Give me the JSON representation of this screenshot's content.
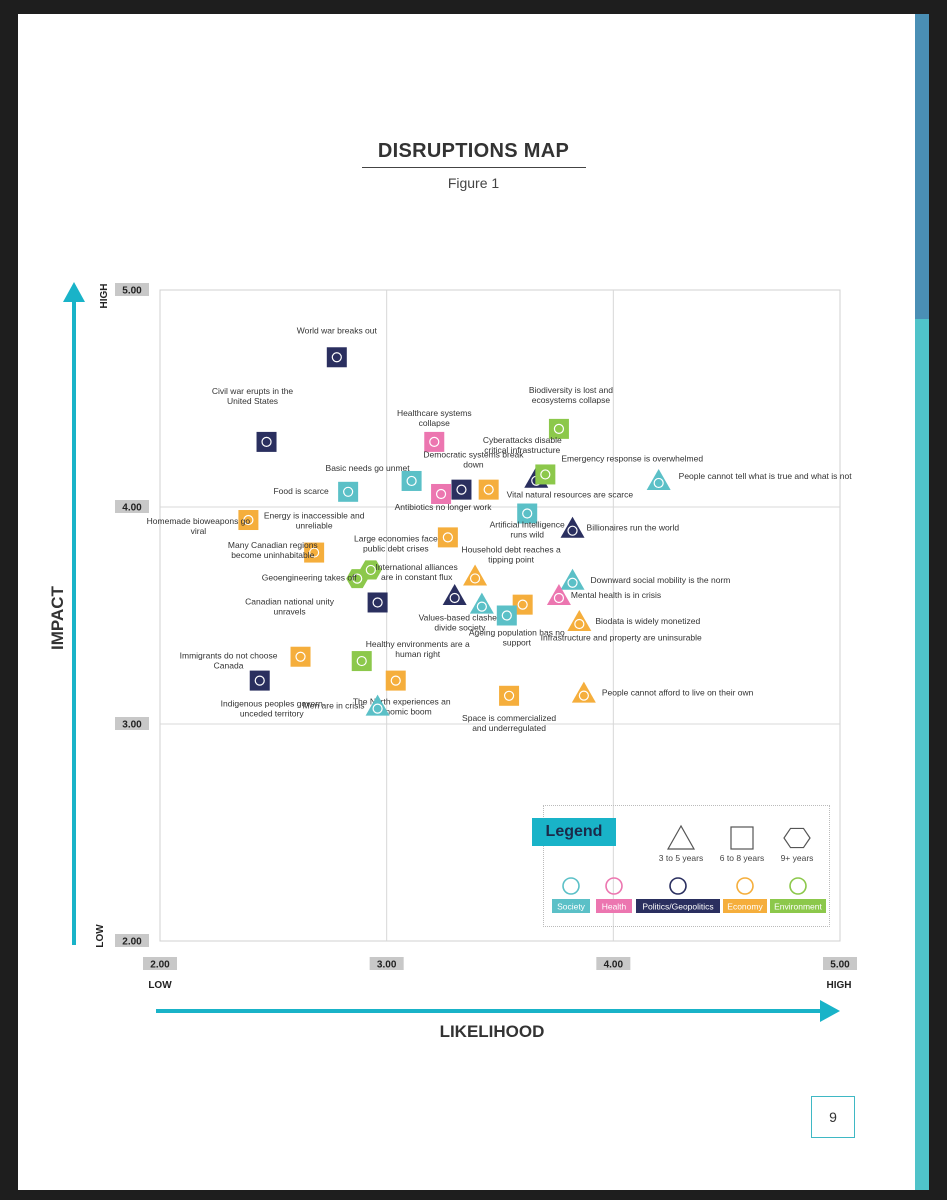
{
  "page": {
    "title": "DISRUPTIONS MAP",
    "subtitle": "Figure 1",
    "number": "9"
  },
  "chart_data": {
    "type": "scatter",
    "title": "DISRUPTIONS MAP",
    "subtitle": "Figure 1",
    "xlabel": "LIKELIHOOD",
    "ylabel": "IMPACT",
    "xlim": [
      2.0,
      5.0
    ],
    "ylim": [
      2.0,
      5.0
    ],
    "xticks": [
      "2.00",
      "3.00",
      "4.00",
      "5.00"
    ],
    "yticks": [
      "2.00",
      "3.00",
      "4.00",
      "5.00"
    ],
    "x_low": "LOW",
    "x_high": "HIGH",
    "y_low": "LOW",
    "y_high": "HIGH",
    "grid": true,
    "legend": {
      "title": "Legend",
      "shapes": [
        {
          "shape": "triangle",
          "label": "3 to 5 years"
        },
        {
          "shape": "square",
          "label": "6 to 8 years"
        },
        {
          "shape": "hexagon",
          "label": "9+ years"
        }
      ],
      "categories": [
        {
          "name": "Society",
          "color": "#5bc0c7"
        },
        {
          "name": "Health",
          "color": "#ec76b0"
        },
        {
          "name": "Politics/Geopolitics",
          "color": "#2a2f5f"
        },
        {
          "name": "Economy",
          "color": "#f5ae3c"
        },
        {
          "name": "Environment",
          "color": "#8cc84b"
        }
      ]
    },
    "points": [
      {
        "label": "World war breaks out",
        "x": 2.78,
        "y": 4.69,
        "cat": "Politics/Geopolitics",
        "shape": "square"
      },
      {
        "label": "Civil war erupts in the United States",
        "x": 2.47,
        "y": 4.3,
        "cat": "Politics/Geopolitics",
        "shape": "square"
      },
      {
        "label": "Healthcare systems collapse",
        "x": 3.21,
        "y": 4.3,
        "cat": "Health",
        "shape": "square"
      },
      {
        "label": "Biodiversity is lost and ecosystems collapse",
        "x": 3.76,
        "y": 4.36,
        "cat": "Environment",
        "shape": "square"
      },
      {
        "label": "Cyberattacks disable critical infrastructure",
        "x": 3.66,
        "y": 4.13,
        "cat": "Politics/Geopolitics",
        "shape": "triangle"
      },
      {
        "label": "Emergency response is overwhelmed",
        "x": 3.7,
        "y": 4.15,
        "cat": "Environment",
        "shape": "square"
      },
      {
        "label": "People cannot tell what is true and what is not",
        "x": 4.2,
        "y": 4.12,
        "cat": "Society",
        "shape": "triangle"
      },
      {
        "label": "Basic needs go unmet",
        "x": 3.11,
        "y": 4.12,
        "cat": "Society",
        "shape": "square"
      },
      {
        "label": "Democratic systems break down",
        "x": 3.33,
        "y": 4.08,
        "cat": "Politics/Geopolitics",
        "shape": "square"
      },
      {
        "label": "Food is scarce",
        "x": 2.83,
        "y": 4.07,
        "cat": "Society",
        "shape": "square"
      },
      {
        "label": "Antibiotics no longer work",
        "x": 3.24,
        "y": 4.06,
        "cat": "Health",
        "shape": "square"
      },
      {
        "label": "Vital natural resources are scarce",
        "x": 3.45,
        "y": 4.08,
        "cat": "Economy",
        "shape": "square"
      },
      {
        "label": "Artificial Intelligence runs wild",
        "x": 3.62,
        "y": 3.97,
        "cat": "Society",
        "shape": "square"
      },
      {
        "label": "Billionaires run the world",
        "x": 3.82,
        "y": 3.9,
        "cat": "Politics/Geopolitics",
        "shape": "triangle"
      },
      {
        "label": "Homemade bioweapons go viral",
        "x": 2.39,
        "y": 3.94,
        "cat": "Economy",
        "shape": "square"
      },
      {
        "label": "Large economies face public debt crises",
        "x": 3.27,
        "y": 3.86,
        "cat": "Economy",
        "shape": "square"
      },
      {
        "label": "Energy is inaccessible and unreliable",
        "x": 2.68,
        "y": 3.79,
        "cat": "Economy",
        "shape": "square"
      },
      {
        "label": "Many Canadian regions become uninhabitable",
        "x": 2.93,
        "y": 3.71,
        "cat": "Environment",
        "shape": "hexagon"
      },
      {
        "label": "Household debt reaches a tipping point",
        "x": 3.39,
        "y": 3.68,
        "cat": "Economy",
        "shape": "triangle"
      },
      {
        "label": "Geoengineering takes off",
        "x": 2.87,
        "y": 3.67,
        "cat": "Environment",
        "shape": "hexagon"
      },
      {
        "label": "Downward social mobility is the norm",
        "x": 3.82,
        "y": 3.66,
        "cat": "Society",
        "shape": "triangle"
      },
      {
        "label": "International alliances are in constant flux",
        "x": 3.3,
        "y": 3.59,
        "cat": "Politics/Geopolitics",
        "shape": "triangle"
      },
      {
        "label": "Mental health is in crisis",
        "x": 3.76,
        "y": 3.59,
        "cat": "Health",
        "shape": "triangle"
      },
      {
        "label": "Canadian national unity unravels",
        "x": 2.96,
        "y": 3.56,
        "cat": "Politics/Geopolitics",
        "shape": "square"
      },
      {
        "label": "Values-based clashes divide society",
        "x": 3.42,
        "y": 3.55,
        "cat": "Society",
        "shape": "triangle"
      },
      {
        "label": "Infrastructure and property are uninsurable",
        "x": 3.6,
        "y": 3.55,
        "cat": "Economy",
        "shape": "square"
      },
      {
        "label": "Ageing population has no support",
        "x": 3.53,
        "y": 3.5,
        "cat": "Society",
        "shape": "square"
      },
      {
        "label": "Biodata is widely monetized",
        "x": 3.85,
        "y": 3.47,
        "cat": "Economy",
        "shape": "triangle"
      },
      {
        "label": "Immigrants do not choose Canada",
        "x": 2.62,
        "y": 3.31,
        "cat": "Economy",
        "shape": "square"
      },
      {
        "label": "Healthy environments are a human right",
        "x": 2.89,
        "y": 3.29,
        "cat": "Environment",
        "shape": "square"
      },
      {
        "label": "Indigenous peoples govern unceded territory",
        "x": 2.44,
        "y": 3.2,
        "cat": "Politics/Geopolitics",
        "shape": "square"
      },
      {
        "label": "The North experiences an economic boom",
        "x": 3.04,
        "y": 3.2,
        "cat": "Economy",
        "shape": "square"
      },
      {
        "label": "Space is commercialized and underregulated",
        "x": 3.54,
        "y": 3.13,
        "cat": "Economy",
        "shape": "square"
      },
      {
        "label": "People cannot afford to live on their own",
        "x": 3.87,
        "y": 3.14,
        "cat": "Economy",
        "shape": "triangle"
      },
      {
        "label": "Men are in crisis",
        "x": 2.96,
        "y": 3.08,
        "cat": "Society",
        "shape": "triangle"
      }
    ]
  }
}
